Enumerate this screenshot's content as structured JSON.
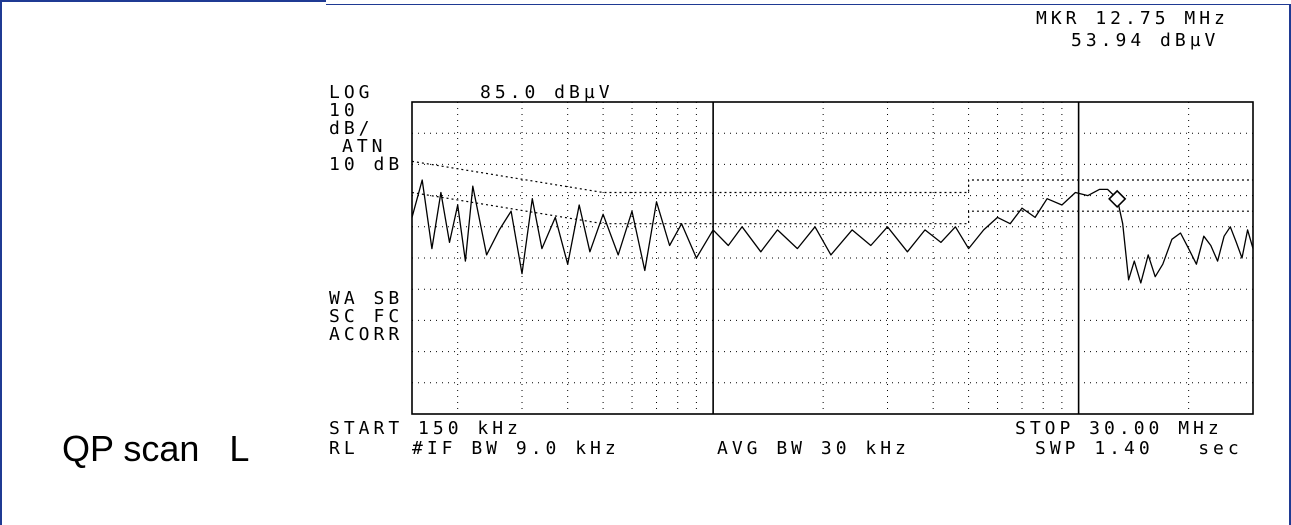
{
  "header": {
    "marker_freq": "MKR 12.75 MHz",
    "marker_level": "53.94 dBµV"
  },
  "left_labels": {
    "scale_mode": "LOG",
    "ref_level": "85.0 dBµV",
    "div_value": "10",
    "div_unit": "dB/",
    "atn_label": "ATN",
    "atn_value": "10 dB",
    "wa_sb": "WA SB",
    "sc_fc": "SC FC",
    "acorr": "ACORR"
  },
  "footer": {
    "start": "START 150 kHz",
    "stop": "STOP 30.00 MHz",
    "rl": "RL",
    "if_bw": "#IF BW 9.0 kHz",
    "avg_bw": "AVG BW 30 kHz",
    "sweep": "SWP 1.40   sec"
  },
  "caption": "QP scan   L",
  "colors": {
    "frame": "#1f3a93",
    "trace": "#000000"
  },
  "chart_data": {
    "type": "line",
    "x_scale": "log",
    "x_unit": "MHz",
    "xlim": [
      0.15,
      30.0
    ],
    "y_unit": "dBµV",
    "ylim": [
      -15,
      85
    ],
    "y_div": 10,
    "grid": true,
    "marker": {
      "x": 12.75,
      "y": 53.94
    },
    "limit_lines": [
      {
        "name": "",
        "points": [
          [
            0.15,
            66
          ],
          [
            0.5,
            56
          ],
          [
            5,
            56
          ],
          [
            5,
            60
          ],
          [
            30,
            60
          ]
        ]
      },
      {
        "name": "",
        "points": [
          [
            0.15,
            56
          ],
          [
            0.5,
            46
          ],
          [
            5,
            46
          ],
          [
            5,
            50
          ],
          [
            30,
            50
          ]
        ]
      }
    ],
    "series": [
      {
        "name": "",
        "x": [
          0.15,
          0.16,
          0.17,
          0.18,
          0.19,
          0.2,
          0.21,
          0.22,
          0.24,
          0.26,
          0.28,
          0.3,
          0.32,
          0.34,
          0.37,
          0.4,
          0.43,
          0.46,
          0.5,
          0.55,
          0.6,
          0.65,
          0.7,
          0.76,
          0.82,
          0.9,
          1.0,
          1.1,
          1.2,
          1.35,
          1.5,
          1.7,
          1.9,
          2.1,
          2.4,
          2.7,
          3.0,
          3.4,
          3.8,
          4.2,
          4.6,
          5.0,
          5.5,
          6.0,
          6.5,
          7.0,
          7.6,
          8.2,
          9.0,
          9.8,
          10.6,
          11.4,
          12.0,
          12.75,
          13.2,
          13.7,
          14.2,
          14.8,
          15.5,
          16.2,
          17.0,
          18.0,
          19.0,
          20.0,
          21.0,
          22.0,
          23.0,
          24.0,
          25.0,
          26.0,
          27.0,
          28.0,
          29.0,
          30.0
        ],
        "y": [
          48,
          60,
          38,
          56,
          40,
          52,
          34,
          58,
          36,
          44,
          50,
          30,
          54,
          38,
          48,
          33,
          52,
          37,
          49,
          36,
          50,
          31,
          53,
          39,
          46,
          35,
          44,
          39,
          45,
          37,
          44,
          38,
          45,
          36,
          44,
          39,
          45,
          37,
          44,
          40,
          45,
          38,
          44,
          48,
          46,
          51,
          48,
          54,
          52,
          56,
          55,
          57,
          57,
          54,
          46,
          28,
          34,
          27,
          36,
          29,
          33,
          41,
          43,
          38,
          33,
          42,
          39,
          34,
          42,
          45,
          40,
          35,
          44,
          38
        ]
      }
    ]
  }
}
